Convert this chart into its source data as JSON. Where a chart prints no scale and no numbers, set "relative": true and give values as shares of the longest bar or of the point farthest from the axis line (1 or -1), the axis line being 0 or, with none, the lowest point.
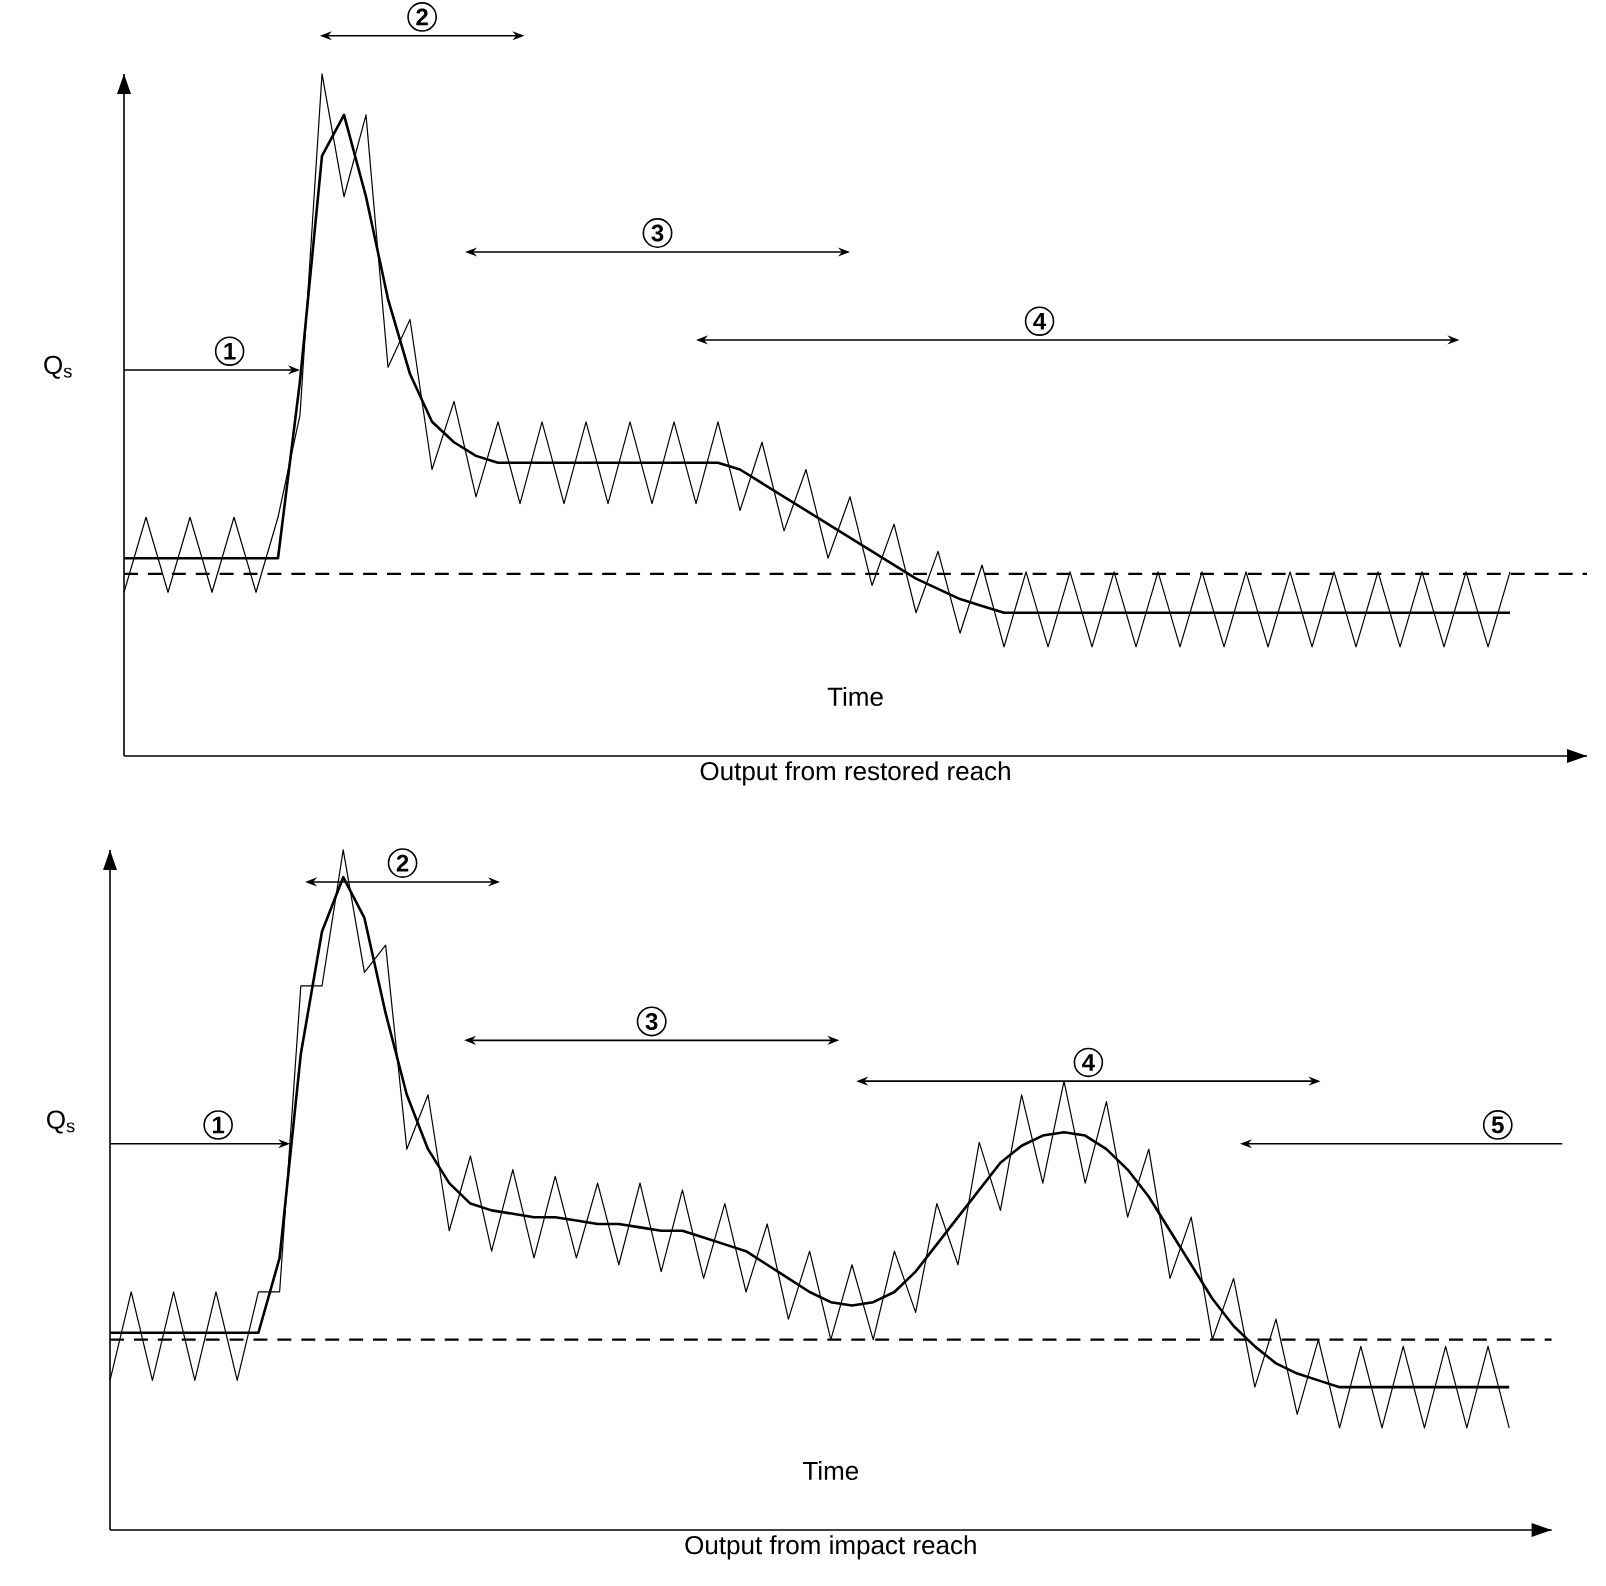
{
  "chart_data": [
    {
      "type": "line",
      "relative": true,
      "title": "Output from restored reach",
      "xlabel": "Time",
      "ylabel": "Q$_{s}$",
      "categories": [
        null,
        null,
        null,
        null,
        null,
        null,
        null,
        null,
        null,
        null,
        null,
        null,
        null,
        null,
        null,
        null,
        null,
        null,
        null,
        null,
        null,
        null,
        null,
        null,
        null,
        null,
        null,
        null,
        null,
        null,
        null,
        null,
        null,
        null,
        null,
        null,
        null,
        null,
        null,
        null,
        null,
        null,
        null,
        null,
        null,
        null,
        null,
        null,
        null,
        null,
        null,
        null,
        null,
        null,
        null,
        null,
        null,
        null,
        null,
        null,
        null,
        null,
        null,
        null
      ],
      "series": [
        {
          "color": "#000000",
          "values": [
            0.24,
            0.35,
            0.24,
            0.35,
            0.24,
            0.35,
            0.24,
            0.35,
            0.5,
            1.0,
            0.82,
            0.94,
            0.57,
            0.64,
            0.42,
            0.52,
            0.38,
            0.49,
            0.37,
            0.49,
            0.37,
            0.49,
            0.37,
            0.49,
            0.37,
            0.49,
            0.37,
            0.49,
            0.36,
            0.46,
            0.33,
            0.42,
            0.29,
            0.38,
            0.25,
            0.34,
            0.21,
            0.3,
            0.18,
            0.28,
            0.16,
            0.27,
            0.16,
            0.27,
            0.16,
            0.27,
            0.16,
            0.27,
            0.16,
            0.27,
            0.16,
            0.27,
            0.16,
            0.27,
            0.16,
            0.27,
            0.16,
            0.27,
            0.16,
            0.27,
            0.16,
            0.27,
            0.16,
            0.27
          ]
        },
        {
          "color": "#000000",
          "values": [
            0.29,
            0.29,
            0.29,
            0.29,
            0.29,
            0.29,
            0.29,
            0.29,
            0.55,
            0.88,
            0.94,
            0.82,
            0.67,
            0.56,
            0.49,
            0.46,
            0.44,
            0.43,
            0.43,
            0.43,
            0.43,
            0.43,
            0.43,
            0.43,
            0.43,
            0.43,
            0.43,
            0.43,
            0.42,
            0.4,
            0.38,
            0.36,
            0.34,
            0.32,
            0.3,
            0.28,
            0.26,
            0.245,
            0.23,
            0.22,
            0.21,
            0.21,
            0.21,
            0.21,
            0.21,
            0.21,
            0.21,
            0.21,
            0.21,
            0.21,
            0.21,
            0.21,
            0.21,
            0.21,
            0.21,
            0.21,
            0.21,
            0.21,
            0.21,
            0.21,
            0.21,
            0.21,
            0.21,
            0.21
          ]
        }
      ],
      "ref_lines": [
        {
          "axis": "y",
          "value": 0.267,
          "line_style": "dashed"
        }
      ],
      "annotations": [
        "1",
        "2",
        "3",
        "4"
      ]
    },
    {
      "type": "line",
      "relative": true,
      "title": "Output from impact reach",
      "xlabel": "Time",
      "ylabel": "Q$_{s}$",
      "categories": [
        null,
        null,
        null,
        null,
        null,
        null,
        null,
        null,
        null,
        null,
        null,
        null,
        null,
        null,
        null,
        null,
        null,
        null,
        null,
        null,
        null,
        null,
        null,
        null,
        null,
        null,
        null,
        null,
        null,
        null,
        null,
        null,
        null,
        null,
        null,
        null,
        null,
        null,
        null,
        null,
        null,
        null,
        null,
        null,
        null,
        null,
        null,
        null,
        null,
        null,
        null,
        null,
        null,
        null,
        null,
        null,
        null,
        null,
        null,
        null,
        null,
        null,
        null,
        null,
        null,
        null,
        null
      ],
      "series": [
        {
          "color": "#000000",
          "values": [
            0.22,
            0.35,
            0.22,
            0.35,
            0.22,
            0.35,
            0.22,
            0.35,
            0.35,
            0.8,
            0.8,
            1.0,
            0.82,
            0.86,
            0.56,
            0.64,
            0.44,
            0.55,
            0.41,
            0.53,
            0.4,
            0.52,
            0.4,
            0.51,
            0.39,
            0.51,
            0.38,
            0.5,
            0.37,
            0.48,
            0.35,
            0.45,
            0.31,
            0.41,
            0.28,
            0.39,
            0.28,
            0.41,
            0.32,
            0.48,
            0.39,
            0.57,
            0.47,
            0.64,
            0.51,
            0.66,
            0.51,
            0.63,
            0.46,
            0.56,
            0.37,
            0.46,
            0.28,
            0.37,
            0.21,
            0.31,
            0.17,
            0.28,
            0.15,
            0.27,
            0.15,
            0.27,
            0.15,
            0.27,
            0.15,
            0.27,
            0.15
          ]
        },
        {
          "color": "#000000",
          "values": [
            0.29,
            0.29,
            0.29,
            0.29,
            0.29,
            0.29,
            0.29,
            0.29,
            0.4,
            0.7,
            0.88,
            0.96,
            0.9,
            0.76,
            0.64,
            0.56,
            0.51,
            0.48,
            0.47,
            0.465,
            0.46,
            0.46,
            0.455,
            0.45,
            0.45,
            0.445,
            0.44,
            0.44,
            0.43,
            0.42,
            0.41,
            0.39,
            0.37,
            0.35,
            0.335,
            0.33,
            0.335,
            0.35,
            0.38,
            0.42,
            0.46,
            0.5,
            0.54,
            0.565,
            0.58,
            0.585,
            0.58,
            0.56,
            0.53,
            0.49,
            0.44,
            0.39,
            0.34,
            0.3,
            0.27,
            0.245,
            0.23,
            0.22,
            0.21,
            0.21,
            0.21,
            0.21,
            0.21,
            0.21,
            0.21,
            0.21,
            0.21
          ]
        }
      ],
      "ref_lines": [
        {
          "axis": "y",
          "value": 0.28,
          "line_style": "dashed"
        }
      ],
      "annotations": [
        "1",
        "2",
        "3",
        "4",
        "5"
      ]
    }
  ]
}
